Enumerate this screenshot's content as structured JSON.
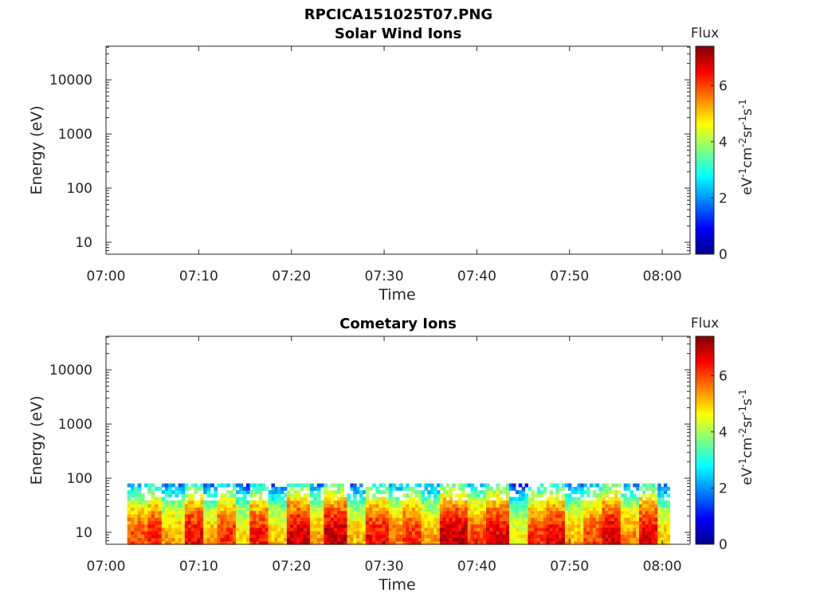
{
  "figure": {
    "title": "RPCICA151025T07.PNG"
  },
  "chart_data": [
    {
      "type": "heatmap",
      "title": "Solar Wind Ions",
      "xlabel": "Time",
      "ylabel": "Energy (eV)",
      "x_ticks": [
        "07:00",
        "07:10",
        "07:20",
        "07:30",
        "07:40",
        "07:50",
        "08:00"
      ],
      "y_ticks": [
        "10",
        "100",
        "1000",
        "10000"
      ],
      "xlim_minutes": [
        0,
        63
      ],
      "ylim_log10": [
        0.78,
        4.62
      ],
      "yscale": "log",
      "colorbar": {
        "title": "Flux",
        "label": "eV-1cm-2sr-1s-1",
        "ticks": [
          "0",
          "2",
          "4",
          "6"
        ],
        "range": [
          0,
          7.4
        ],
        "colormap": "jet"
      },
      "data_present": false,
      "data_bands": []
    },
    {
      "type": "heatmap",
      "title": "Cometary Ions",
      "xlabel": "Time",
      "ylabel": "Energy (eV)",
      "x_ticks": [
        "07:00",
        "07:10",
        "07:20",
        "07:30",
        "07:40",
        "07:50",
        "08:00"
      ],
      "y_ticks": [
        "10",
        "100",
        "1000",
        "10000"
      ],
      "xlim_minutes": [
        0,
        63
      ],
      "ylim_log10": [
        0.78,
        4.62
      ],
      "yscale": "log",
      "colorbar": {
        "title": "Flux",
        "label": "eV-1cm-2sr-1s-1",
        "ticks": [
          "0",
          "2",
          "4",
          "6"
        ],
        "range": [
          0,
          7.4
        ],
        "colormap": "jet"
      },
      "data_present": true,
      "data_time_range_minutes": [
        2.3,
        60.8
      ],
      "data_energy_top_ev": 80,
      "data_bands": [
        {
          "t0": 2.3,
          "t1": 4.5,
          "flux": 5.9
        },
        {
          "t0": 4.5,
          "t1": 6.0,
          "flux": 6.3
        },
        {
          "t0": 6.0,
          "t1": 8.5,
          "flux": 5.3
        },
        {
          "t0": 8.5,
          "t1": 10.5,
          "flux": 6.6
        },
        {
          "t0": 10.5,
          "t1": 12.0,
          "flux": 5.2
        },
        {
          "t0": 12.0,
          "t1": 14.0,
          "flux": 6.2
        },
        {
          "t0": 14.0,
          "t1": 15.5,
          "flux": 4.9
        },
        {
          "t0": 15.5,
          "t1": 17.5,
          "flux": 6.4
        },
        {
          "t0": 17.5,
          "t1": 19.5,
          "flux": 5.0
        },
        {
          "t0": 19.5,
          "t1": 22.0,
          "flux": 6.8
        },
        {
          "t0": 22.0,
          "t1": 23.5,
          "flux": 5.4
        },
        {
          "t0": 23.5,
          "t1": 26.0,
          "flux": 6.9
        },
        {
          "t0": 26.0,
          "t1": 28.0,
          "flux": 5.1
        },
        {
          "t0": 28.0,
          "t1": 30.5,
          "flux": 6.5
        },
        {
          "t0": 30.5,
          "t1": 32.0,
          "flux": 5.6
        },
        {
          "t0": 32.0,
          "t1": 34.0,
          "flux": 6.2
        },
        {
          "t0": 34.0,
          "t1": 36.0,
          "flux": 5.3
        },
        {
          "t0": 36.0,
          "t1": 39.0,
          "flux": 6.9
        },
        {
          "t0": 39.0,
          "t1": 41.0,
          "flux": 6.0
        },
        {
          "t0": 41.0,
          "t1": 43.5,
          "flux": 6.7
        },
        {
          "t0": 43.5,
          "t1": 45.5,
          "flux": 4.7
        },
        {
          "t0": 45.5,
          "t1": 47.5,
          "flux": 6.1
        },
        {
          "t0": 47.5,
          "t1": 49.5,
          "flux": 6.6
        },
        {
          "t0": 49.5,
          "t1": 51.5,
          "flux": 5.2
        },
        {
          "t0": 51.5,
          "t1": 53.5,
          "flux": 6.0
        },
        {
          "t0": 53.5,
          "t1": 55.5,
          "flux": 6.8
        },
        {
          "t0": 55.5,
          "t1": 57.5,
          "flux": 5.5
        },
        {
          "t0": 57.5,
          "t1": 59.5,
          "flux": 6.7
        },
        {
          "t0": 59.5,
          "t1": 60.8,
          "flux": 5.0
        }
      ]
    }
  ]
}
